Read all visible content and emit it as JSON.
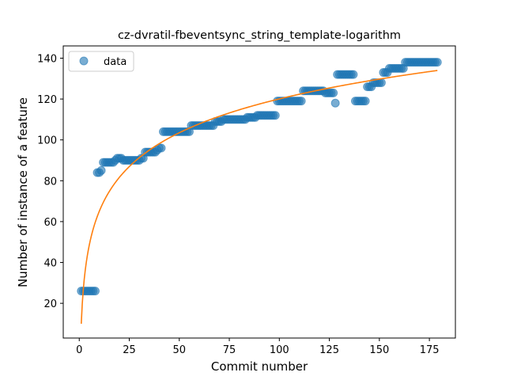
{
  "chart_data": {
    "type": "scatter",
    "title": "cz-dvratil-fbeventsync_string_template-logarithm",
    "xlabel": "Commit number",
    "ylabel": "Number of instance of a feature",
    "xlim": [
      -8,
      188
    ],
    "ylim": [
      3,
      146
    ],
    "xticks": [
      0,
      25,
      50,
      75,
      100,
      125,
      150,
      175
    ],
    "yticks": [
      20,
      40,
      60,
      80,
      100,
      120,
      140
    ],
    "grid": false,
    "legend": {
      "placement": "top-left",
      "entries": [
        "data"
      ]
    },
    "colors": {
      "data": "#1f77b4",
      "fit": "#ff7f0e"
    },
    "series": [
      {
        "name": "data",
        "kind": "scatter",
        "points": [
          [
            1,
            26
          ],
          [
            2,
            26
          ],
          [
            3,
            26
          ],
          [
            4,
            26
          ],
          [
            5,
            26
          ],
          [
            6,
            26
          ],
          [
            7,
            26
          ],
          [
            8,
            26
          ],
          [
            9,
            84
          ],
          [
            10,
            84
          ],
          [
            11,
            85
          ],
          [
            12,
            89
          ],
          [
            13,
            89
          ],
          [
            14,
            89
          ],
          [
            15,
            89
          ],
          [
            16,
            89
          ],
          [
            17,
            89
          ],
          [
            18,
            90
          ],
          [
            19,
            91
          ],
          [
            20,
            91
          ],
          [
            21,
            91
          ],
          [
            22,
            90
          ],
          [
            23,
            90
          ],
          [
            24,
            90
          ],
          [
            25,
            90
          ],
          [
            26,
            90
          ],
          [
            27,
            90
          ],
          [
            28,
            90
          ],
          [
            29,
            90
          ],
          [
            30,
            90
          ],
          [
            31,
            91
          ],
          [
            32,
            91
          ],
          [
            33,
            94
          ],
          [
            34,
            94
          ],
          [
            35,
            94
          ],
          [
            36,
            94
          ],
          [
            37,
            94
          ],
          [
            38,
            94
          ],
          [
            39,
            95
          ],
          [
            40,
            96
          ],
          [
            41,
            96
          ],
          [
            42,
            104
          ],
          [
            43,
            104
          ],
          [
            44,
            104
          ],
          [
            45,
            104
          ],
          [
            46,
            104
          ],
          [
            47,
            104
          ],
          [
            48,
            104
          ],
          [
            49,
            104
          ],
          [
            50,
            104
          ],
          [
            51,
            104
          ],
          [
            52,
            104
          ],
          [
            53,
            104
          ],
          [
            54,
            104
          ],
          [
            55,
            104
          ],
          [
            56,
            107
          ],
          [
            57,
            107
          ],
          [
            58,
            107
          ],
          [
            59,
            107
          ],
          [
            60,
            107
          ],
          [
            61,
            107
          ],
          [
            62,
            107
          ],
          [
            63,
            107
          ],
          [
            64,
            107
          ],
          [
            65,
            107
          ],
          [
            66,
            107
          ],
          [
            67,
            107
          ],
          [
            68,
            109
          ],
          [
            69,
            109
          ],
          [
            70,
            109
          ],
          [
            71,
            109
          ],
          [
            72,
            110
          ],
          [
            73,
            110
          ],
          [
            74,
            110
          ],
          [
            75,
            110
          ],
          [
            76,
            110
          ],
          [
            77,
            110
          ],
          [
            78,
            110
          ],
          [
            79,
            110
          ],
          [
            80,
            110
          ],
          [
            81,
            110
          ],
          [
            82,
            110
          ],
          [
            83,
            110
          ],
          [
            84,
            111
          ],
          [
            85,
            111
          ],
          [
            86,
            111
          ],
          [
            87,
            111
          ],
          [
            88,
            111
          ],
          [
            89,
            112
          ],
          [
            90,
            112
          ],
          [
            91,
            112
          ],
          [
            92,
            112
          ],
          [
            93,
            112
          ],
          [
            94,
            112
          ],
          [
            95,
            112
          ],
          [
            96,
            112
          ],
          [
            97,
            112
          ],
          [
            98,
            112
          ],
          [
            99,
            119
          ],
          [
            100,
            119
          ],
          [
            101,
            119
          ],
          [
            102,
            119
          ],
          [
            103,
            119
          ],
          [
            104,
            119
          ],
          [
            105,
            119
          ],
          [
            106,
            119
          ],
          [
            107,
            119
          ],
          [
            108,
            119
          ],
          [
            109,
            119
          ],
          [
            110,
            119
          ],
          [
            111,
            119
          ],
          [
            112,
            124
          ],
          [
            113,
            124
          ],
          [
            114,
            124
          ],
          [
            115,
            124
          ],
          [
            116,
            124
          ],
          [
            117,
            124
          ],
          [
            118,
            124
          ],
          [
            119,
            124
          ],
          [
            120,
            124
          ],
          [
            121,
            124
          ],
          [
            122,
            124
          ],
          [
            123,
            123
          ],
          [
            124,
            123
          ],
          [
            125,
            123
          ],
          [
            126,
            123
          ],
          [
            127,
            123
          ],
          [
            128,
            118
          ],
          [
            129,
            132
          ],
          [
            130,
            132
          ],
          [
            131,
            132
          ],
          [
            132,
            132
          ],
          [
            133,
            132
          ],
          [
            134,
            132
          ],
          [
            135,
            132
          ],
          [
            136,
            132
          ],
          [
            137,
            132
          ],
          [
            138,
            119
          ],
          [
            139,
            119
          ],
          [
            140,
            119
          ],
          [
            141,
            119
          ],
          [
            142,
            119
          ],
          [
            143,
            119
          ],
          [
            144,
            126
          ],
          [
            145,
            126
          ],
          [
            146,
            126
          ],
          [
            147,
            128
          ],
          [
            148,
            128
          ],
          [
            149,
            128
          ],
          [
            150,
            128
          ],
          [
            151,
            128
          ],
          [
            152,
            133
          ],
          [
            153,
            133
          ],
          [
            154,
            133
          ],
          [
            155,
            135
          ],
          [
            156,
            135
          ],
          [
            157,
            135
          ],
          [
            158,
            135
          ],
          [
            159,
            135
          ],
          [
            160,
            135
          ],
          [
            161,
            135
          ],
          [
            162,
            135
          ],
          [
            163,
            138
          ],
          [
            164,
            138
          ],
          [
            165,
            138
          ],
          [
            166,
            138
          ],
          [
            167,
            138
          ],
          [
            168,
            138
          ],
          [
            169,
            138
          ],
          [
            170,
            138
          ],
          [
            171,
            138
          ],
          [
            172,
            138
          ],
          [
            173,
            138
          ],
          [
            174,
            138
          ],
          [
            175,
            138
          ],
          [
            176,
            138
          ],
          [
            177,
            138
          ],
          [
            178,
            138
          ],
          [
            179,
            138
          ]
        ]
      },
      {
        "name": "",
        "kind": "line",
        "model": "logarithmic",
        "a": 10,
        "b": 23.9,
        "x_range": [
          1,
          179
        ]
      }
    ]
  }
}
